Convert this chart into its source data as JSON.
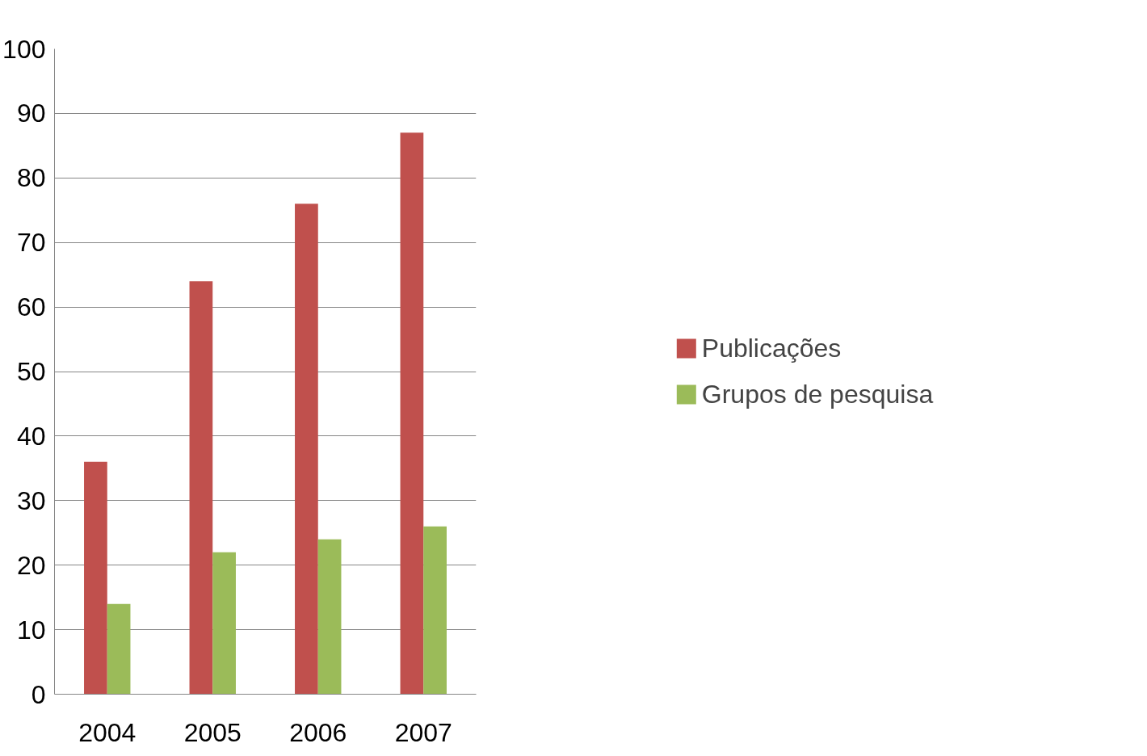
{
  "chart_data": {
    "type": "bar",
    "categories": [
      "2004",
      "2005",
      "2006",
      "2007"
    ],
    "series": [
      {
        "name": "Publicações",
        "color": "#c0504d",
        "values": [
          36,
          64,
          76,
          87
        ]
      },
      {
        "name": "Grupos de pesquisa",
        "color": "#9bbb59",
        "values": [
          14,
          22,
          24,
          26
        ]
      }
    ],
    "ylim": [
      0,
      100
    ],
    "yticks": [
      0,
      10,
      20,
      30,
      40,
      50,
      60,
      70,
      80,
      90,
      100
    ],
    "grid": "y",
    "legend": "right"
  }
}
